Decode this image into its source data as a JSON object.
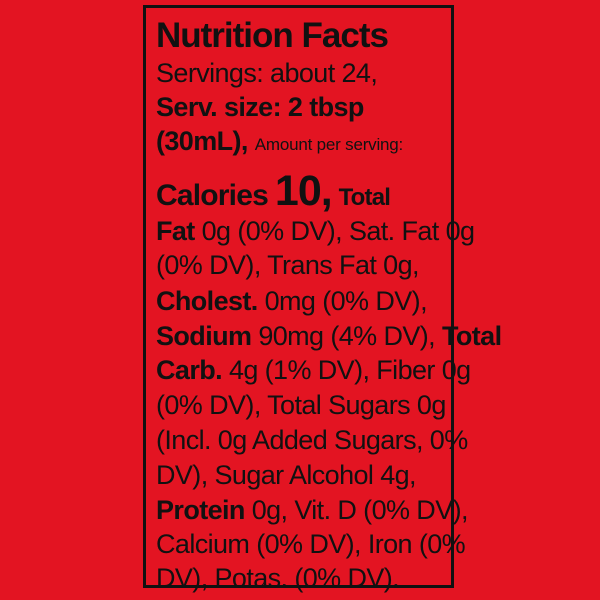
{
  "label": {
    "title": "Nutrition Facts",
    "servings": "Servings: about 24,",
    "serv_size_a": "Serv. size: 2 tbsp",
    "serv_size_b": "(30mL),",
    "amount_per_serving": "Amount per serving:",
    "calories_label": "Calories",
    "calories_value": "10,",
    "total_word": "Total",
    "fat_label": "Fat",
    "fat_text": "0g (0% DV), Sat. Fat 0g",
    "line_trans": "(0% DV), Trans Fat 0g,",
    "cholest_label": "Cholest.",
    "cholest_text": "0mg (0% DV),",
    "sodium_label": "Sodium",
    "sodium_text": "90mg (4% DV),",
    "total_carb_a": "Total",
    "total_carb_b": "Carb.",
    "carb_text": "4g (1% DV), Fiber 0g",
    "line_sugars": "(0% DV), Total Sugars 0g",
    "line_added": "(Incl. 0g Added Sugars, 0%",
    "line_alcohol": "DV), Sugar Alcohol 4g,",
    "protein_label": "Protein",
    "protein_text": "0g, Vit. D (0% DV),",
    "line_calcium": "Calcium (0% DV), Iron (0%",
    "line_potas": "DV), Potas. (0% DV)."
  }
}
